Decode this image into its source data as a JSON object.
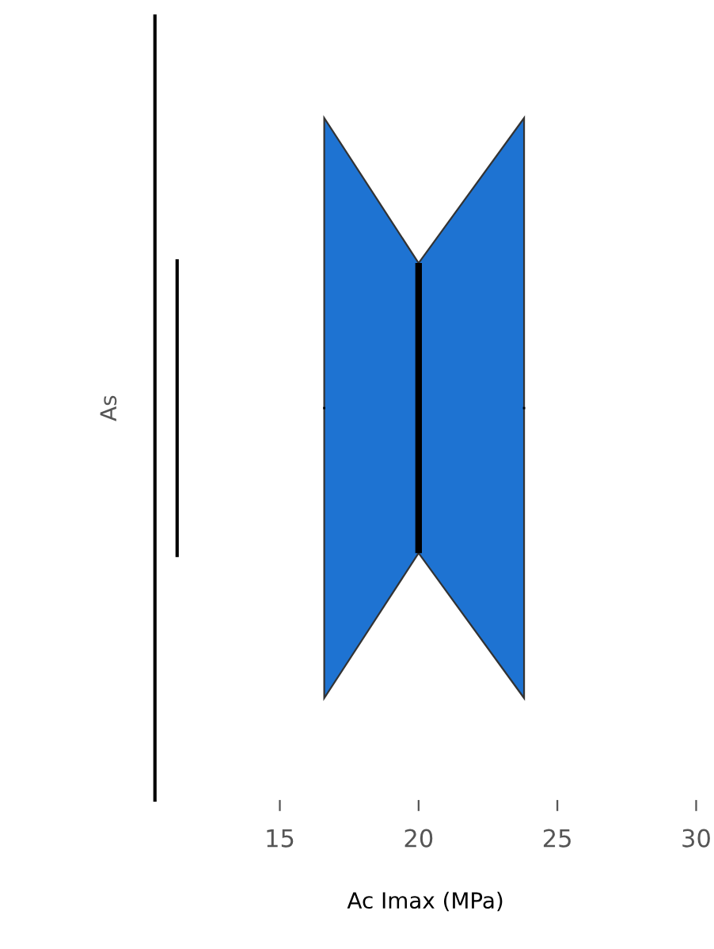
{
  "chart_data": {
    "type": "box",
    "orientation": "horizontal",
    "categories": [
      null
    ],
    "series": [
      {
        "color": "#1e73d2",
        "boxes": [
          {
            "low": 16.6,
            "q1": 16.6,
            "median": 20.0,
            "q3": 23.8,
            "high": 23.8
          }
        ]
      }
    ],
    "xlabel": "Ac Imax (MPa)",
    "ylabel": "As",
    "xlim": [
      10.5,
      30
    ],
    "xticks": [
      15,
      20,
      25,
      30
    ],
    "ref_lines": [
      {
        "axis": "x",
        "value": 11.3,
        "color": "#000000"
      }
    ],
    "grid": false
  }
}
